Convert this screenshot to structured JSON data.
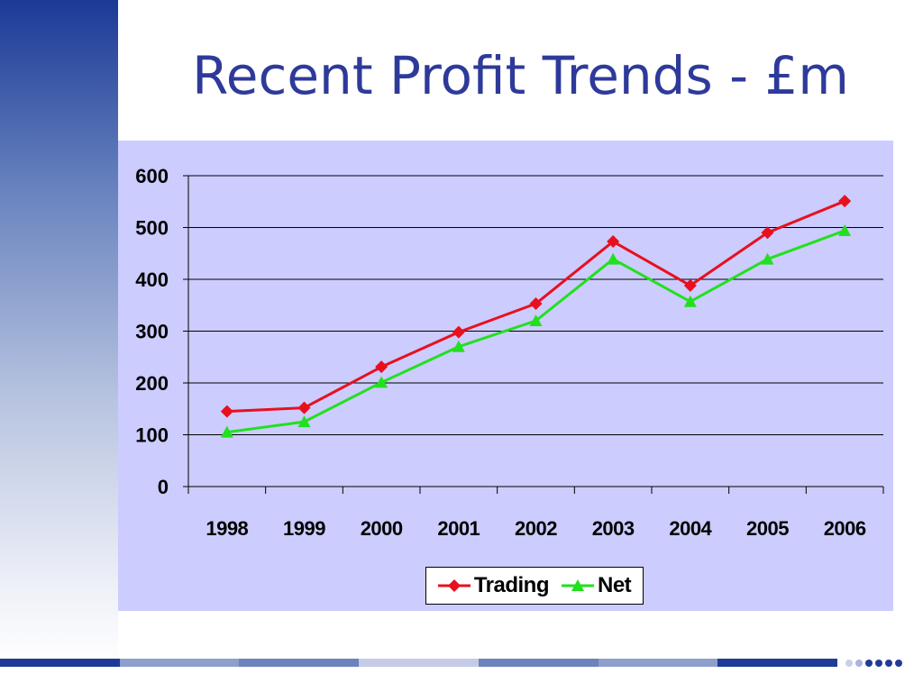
{
  "slide": {
    "title": "Recent Profit Trends - £m",
    "bottom_bar_colors": [
      "#1e3b97",
      "#8e9ecd",
      "#6d83bd",
      "#c5cbe6",
      "#6d83bd",
      "#8e9ecd",
      "#1e3b97"
    ],
    "dot_colors": [
      "#c9cfe8",
      "#a9b5dc",
      "#1e3b97",
      "#1e3b97",
      "#1e3b97",
      "#1e3b97"
    ]
  },
  "chart_data": {
    "type": "line",
    "title": "",
    "xlabel": "",
    "ylabel": "",
    "categories": [
      "1998",
      "1999",
      "2000",
      "2001",
      "2002",
      "2003",
      "2004",
      "2005",
      "2006"
    ],
    "ylim": [
      0,
      600
    ],
    "yticks": [
      0,
      100,
      200,
      300,
      400,
      500,
      600
    ],
    "grid": true,
    "legend_position": "bottom-center",
    "series": [
      {
        "name": "Trading",
        "color": "#e8101e",
        "marker": "diamond",
        "values": [
          145,
          152,
          231,
          298,
          353,
          473,
          388,
          490,
          551
        ]
      },
      {
        "name": "Net",
        "color": "#22e01e",
        "marker": "triangle",
        "values": [
          105,
          125,
          201,
          270,
          320,
          439,
          357,
          439,
          494
        ]
      }
    ]
  }
}
